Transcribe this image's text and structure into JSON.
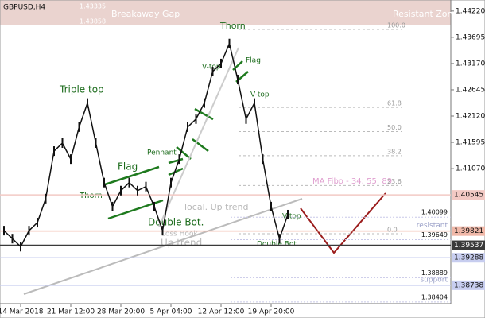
{
  "chart_data": {
    "type": "line",
    "title": "GBPUSD,H4",
    "categories": [
      null,
      null,
      "14 Mar 2018",
      null,
      null,
      null,
      null,
      null,
      "21 Mar 12:00",
      null,
      null,
      null,
      null,
      null,
      "28 Mar 20:00",
      null,
      null,
      null,
      null,
      null,
      "5 Apr 04:00",
      null,
      null,
      null,
      null,
      null,
      "12 Apr 12:00",
      null,
      null,
      null,
      null,
      null,
      "19 Apr 20:00",
      null,
      null
    ],
    "values": [
      1.3983,
      1.3967,
      1.3951,
      1.3983,
      1.3999,
      1.4047,
      1.4142,
      1.4158,
      1.4126,
      1.419,
      1.4238,
      1.4158,
      1.4079,
      1.4031,
      1.4063,
      1.4079,
      1.4063,
      1.4071,
      1.4031,
      1.3983,
      1.4079,
      1.4126,
      1.419,
      1.4206,
      1.4238,
      1.4301,
      1.4317,
      1.4357,
      1.4285,
      1.4206,
      1.4238,
      1.4126,
      1.4031,
      1.3967,
      1.4015
    ],
    "color": "#111111",
    "ylim": [
      1.3837,
      1.4444
    ],
    "yticks": [
      {
        "value": 1.4422,
        "label": "1.44220"
      },
      1.43695,
      {
        "value": 1.4317,
        "label": "1.43170"
      },
      1.42645,
      {
        "value": 1.4212,
        "label": "1.42120"
      },
      1.41595,
      {
        "value": 1.4107,
        "label": "1.41070"
      }
    ],
    "levels": [
      {
        "value": 1.40545,
        "color": "#f2c9c4"
      },
      {
        "value": 1.39821,
        "color": "#f0b8a8",
        "name": "resistant"
      },
      {
        "value": 1.39537,
        "color": "#3a3a3a"
      },
      {
        "value": 1.39288,
        "color": "#c7cdef"
      },
      {
        "value": 1.38738,
        "color": "#c7cdef",
        "name": "support"
      }
    ],
    "price_labels": [
      1.40099,
      1.39649,
      1.38889,
      1.38404
    ],
    "gap_labels": [
      1.43335,
      1.43858
    ],
    "fibo": [
      {
        "value": 100,
        "label": "100.0"
      },
      {
        "value": 61.8,
        "label": "61.8"
      },
      {
        "value": 50,
        "label": "50.0"
      },
      {
        "value": 38.2,
        "label": "38.2"
      },
      {
        "value": 23.6,
        "label": "23.6"
      },
      {
        "value": 0,
        "label": "0.0"
      }
    ],
    "annotations": [
      "Breakaway Gap",
      "Resistant Zone",
      "Thorn",
      "Flag",
      "V-top",
      "Triple top",
      "Pennant",
      "Flag",
      "Thorn",
      "V-top",
      "local. Up trend",
      "Loss Hook",
      "Double Bot.",
      "Up trend",
      "Double Bot.",
      "V-top",
      "MA Fibo - 34; 55; 89"
    ]
  }
}
